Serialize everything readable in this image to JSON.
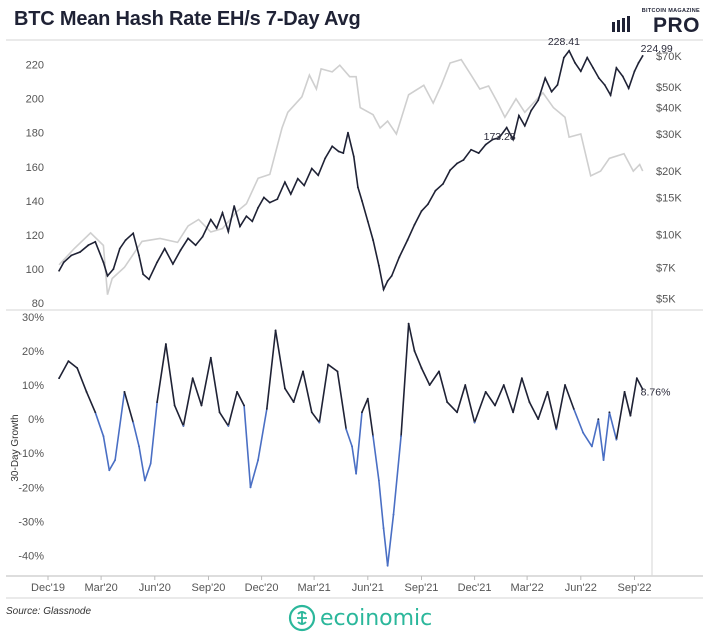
{
  "title": "BTC Mean Hash Rate EH/s 7-Day Avg",
  "logo": {
    "top": "BITCOIN MAGAZINE",
    "main": "PRO"
  },
  "source": "Source: Glassnode",
  "brand": {
    "name": "ecoinomic",
    "color": "#2bb79b"
  },
  "colors": {
    "hashrate": "#1f2235",
    "price": "#cfcfcf",
    "growth_pos": "#1f2235",
    "growth_neg": "#4a6fc4"
  },
  "chart_data": [
    {
      "type": "line",
      "title": "BTC Mean Hash Rate EH/s 7-Day Avg",
      "x_tick_labels": [
        "Dec'19",
        "Mar'20",
        "Jun'20",
        "Sep'20",
        "Dec'20",
        "Mar'21",
        "Jun'21",
        "Sep'21",
        "Dec'21",
        "Mar'22",
        "Jun'22",
        "Sep'22"
      ],
      "y_ticks": [
        80,
        100,
        120,
        140,
        160,
        180,
        200,
        220
      ],
      "ylim": [
        76,
        232
      ],
      "y2_ticks": [
        "$5K",
        "$7K",
        "$10K",
        "$15K",
        "$20K",
        "$30K",
        "$40K",
        "$50K",
        "$70K"
      ],
      "y2_values": [
        5000,
        7000,
        10000,
        15000,
        20000,
        30000,
        40000,
        50000,
        70000
      ],
      "y2_scale": "log",
      "grid": false,
      "annotations": [
        {
          "text": "173.28",
          "x": "2021-12-20",
          "y": 173.28
        },
        {
          "text": "228.41",
          "x": "2022-05-03",
          "y": 228.41
        },
        {
          "text": "224.99",
          "x": "2022-09-15",
          "y": 224.99
        }
      ],
      "series": [
        {
          "role": "hashrate",
          "x": [
            "2019-12-20",
            "2019-12-28",
            "2020-01-10",
            "2020-01-25",
            "2020-02-08",
            "2020-02-20",
            "2020-03-05",
            "2020-03-12",
            "2020-03-22",
            "2020-04-02",
            "2020-04-12",
            "2020-04-25",
            "2020-05-05",
            "2020-05-12",
            "2020-05-22",
            "2020-06-05",
            "2020-06-18",
            "2020-07-02",
            "2020-07-15",
            "2020-07-28",
            "2020-08-10",
            "2020-08-22",
            "2020-09-05",
            "2020-09-15",
            "2020-09-25",
            "2020-10-05",
            "2020-10-15",
            "2020-10-25",
            "2020-11-05",
            "2020-11-15",
            "2020-11-25",
            "2020-12-05",
            "2020-12-15",
            "2020-12-28",
            "2021-01-10",
            "2021-01-20",
            "2021-02-01",
            "2021-02-12",
            "2021-02-25",
            "2021-03-08",
            "2021-03-20",
            "2021-04-01",
            "2021-04-12",
            "2021-04-20",
            "2021-04-28",
            "2021-05-08",
            "2021-05-15",
            "2021-05-22",
            "2021-06-01",
            "2021-06-10",
            "2021-06-20",
            "2021-06-28",
            "2021-07-05",
            "2021-07-12",
            "2021-07-25",
            "2021-08-08",
            "2021-08-20",
            "2021-09-01",
            "2021-09-12",
            "2021-09-25",
            "2021-10-08",
            "2021-10-20",
            "2021-11-01",
            "2021-11-12",
            "2021-11-25",
            "2021-12-08",
            "2021-12-20",
            "2022-01-01",
            "2022-01-12",
            "2022-01-25",
            "2022-02-05",
            "2022-02-15",
            "2022-02-25",
            "2022-03-08",
            "2022-03-20",
            "2022-04-01",
            "2022-04-12",
            "2022-04-22",
            "2022-05-03",
            "2022-05-12",
            "2022-05-22",
            "2022-06-01",
            "2022-06-12",
            "2022-06-22",
            "2022-07-02",
            "2022-07-12",
            "2022-07-22",
            "2022-08-01",
            "2022-08-12",
            "2022-08-22",
            "2022-09-01",
            "2022-09-08",
            "2022-09-15"
          ],
          "values": [
            99,
            104,
            108,
            110,
            114,
            116,
            104,
            96,
            100,
            112,
            117,
            121,
            108,
            97,
            94,
            104,
            112,
            103,
            111,
            118,
            114,
            119,
            129,
            124,
            133,
            122,
            137,
            125,
            131,
            128,
            136,
            142,
            139,
            141,
            151,
            144,
            153,
            149,
            159,
            155,
            165,
            172,
            169,
            168,
            180,
            166,
            148,
            140,
            128,
            117,
            102,
            88,
            93,
            96,
            107,
            117,
            126,
            134,
            138,
            146,
            150,
            158,
            162,
            164,
            170,
            168,
            173,
            176,
            177,
            183,
            176,
            190,
            184,
            193,
            199,
            212,
            204,
            208,
            224,
            228,
            221,
            216,
            224,
            218,
            212,
            208,
            202,
            218,
            213,
            206,
            216,
            221,
            225
          ]
        },
        {
          "role": "price",
          "unit": "USD",
          "scale": "log",
          "x": [
            "2019-12-20",
            "2020-01-15",
            "2020-02-12",
            "2020-03-05",
            "2020-03-12",
            "2020-03-20",
            "2020-04-10",
            "2020-05-10",
            "2020-06-10",
            "2020-07-10",
            "2020-07-28",
            "2020-08-15",
            "2020-09-05",
            "2020-09-25",
            "2020-10-20",
            "2020-11-05",
            "2020-11-25",
            "2020-12-15",
            "2021-01-05",
            "2021-01-15",
            "2021-02-08",
            "2021-02-21",
            "2021-03-05",
            "2021-03-13",
            "2021-04-01",
            "2021-04-14",
            "2021-05-01",
            "2021-05-12",
            "2021-05-19",
            "2021-06-10",
            "2021-06-22",
            "2021-07-05",
            "2021-07-20",
            "2021-08-10",
            "2021-09-05",
            "2021-09-21",
            "2021-10-05",
            "2021-10-20",
            "2021-11-08",
            "2021-11-25",
            "2021-12-10",
            "2021-12-25",
            "2022-01-10",
            "2022-01-22",
            "2022-02-10",
            "2022-02-25",
            "2022-03-28",
            "2022-04-15",
            "2022-05-05",
            "2022-05-12",
            "2022-06-01",
            "2022-06-18",
            "2022-07-05",
            "2022-07-20",
            "2022-08-14",
            "2022-08-30",
            "2022-09-10",
            "2022-09-15"
          ],
          "values": [
            7200,
            8600,
            10200,
            8900,
            5200,
            6200,
            7000,
            9300,
            9600,
            9200,
            11000,
            11800,
            10300,
            10700,
            12900,
            14000,
            18500,
            19300,
            32000,
            38000,
            45000,
            57000,
            49000,
            61000,
            59000,
            63500,
            56000,
            56000,
            40000,
            37000,
            32000,
            34500,
            30000,
            46000,
            51000,
            42000,
            51000,
            65000,
            67500,
            57000,
            49000,
            50600,
            42000,
            36000,
            44000,
            38000,
            47000,
            40000,
            36000,
            29000,
            30000,
            19000,
            20000,
            23000,
            24200,
            20000,
            21500,
            20000
          ]
        }
      ]
    },
    {
      "type": "line",
      "ylabel": "30-Day Growth",
      "x_tick_labels": [
        "Dec'19",
        "Mar'20",
        "Jun'20",
        "Sep'20",
        "Dec'20",
        "Mar'21",
        "Jun'21",
        "Sep'21",
        "Dec'21",
        "Mar'22",
        "Jun'22",
        "Sep'22"
      ],
      "y_ticks": [
        -40,
        -30,
        -20,
        -10,
        0,
        10,
        20,
        30
      ],
      "y_tick_labels": [
        "-40%",
        "-30%",
        "-20%",
        "-10%",
        "0%",
        "10%",
        "20%",
        "30%"
      ],
      "ylim": [
        -46,
        32
      ],
      "grid": false,
      "annotations": [
        {
          "text": "8.76%",
          "x": "2022-09-15",
          "y": 8.76
        }
      ],
      "series": [
        {
          "role": "growth",
          "unit": "%",
          "x": [
            "2019-12-20",
            "2020-01-05",
            "2020-01-20",
            "2020-02-05",
            "2020-02-20",
            "2020-03-05",
            "2020-03-15",
            "2020-03-25",
            "2020-04-10",
            "2020-04-25",
            "2020-05-05",
            "2020-05-15",
            "2020-05-25",
            "2020-06-05",
            "2020-06-20",
            "2020-07-05",
            "2020-07-20",
            "2020-08-05",
            "2020-08-20",
            "2020-09-05",
            "2020-09-20",
            "2020-10-05",
            "2020-10-20",
            "2020-11-01",
            "2020-11-12",
            "2020-11-25",
            "2020-12-10",
            "2020-12-25",
            "2021-01-10",
            "2021-01-25",
            "2021-02-10",
            "2021-02-25",
            "2021-03-10",
            "2021-03-25",
            "2021-04-10",
            "2021-04-25",
            "2021-05-05",
            "2021-05-12",
            "2021-05-22",
            "2021-06-01",
            "2021-06-10",
            "2021-06-20",
            "2021-06-28",
            "2021-07-05",
            "2021-07-15",
            "2021-07-28",
            "2021-08-10",
            "2021-08-20",
            "2021-09-01",
            "2021-09-15",
            "2021-10-01",
            "2021-10-15",
            "2021-11-01",
            "2021-11-15",
            "2021-12-01",
            "2021-12-20",
            "2022-01-05",
            "2022-01-20",
            "2022-02-05",
            "2022-02-20",
            "2022-03-05",
            "2022-03-20",
            "2022-04-05",
            "2022-04-20",
            "2022-05-05",
            "2022-05-20",
            "2022-06-05",
            "2022-06-20",
            "2022-07-01",
            "2022-07-10",
            "2022-07-20",
            "2022-08-01",
            "2022-08-15",
            "2022-08-25",
            "2022-09-05",
            "2022-09-15"
          ],
          "values": [
            12,
            17,
            15,
            8,
            2,
            -5,
            -15,
            -12,
            8,
            -1,
            -8,
            -18,
            -13,
            5,
            22,
            4,
            -2,
            12,
            4,
            18,
            2,
            -2,
            8,
            4,
            -20,
            -12,
            3,
            26,
            9,
            5,
            14,
            2,
            -1,
            16,
            14,
            -3,
            -8,
            -16,
            2,
            6,
            -5,
            -18,
            -32,
            -43,
            -28,
            -5,
            28,
            20,
            15,
            10,
            14,
            5,
            2,
            10,
            -1,
            8,
            4,
            10,
            2,
            12,
            5,
            0,
            8,
            -3,
            10,
            3,
            -4,
            -8,
            0,
            -12,
            2,
            -6,
            8,
            1,
            12,
            8.76
          ]
        }
      ]
    }
  ]
}
